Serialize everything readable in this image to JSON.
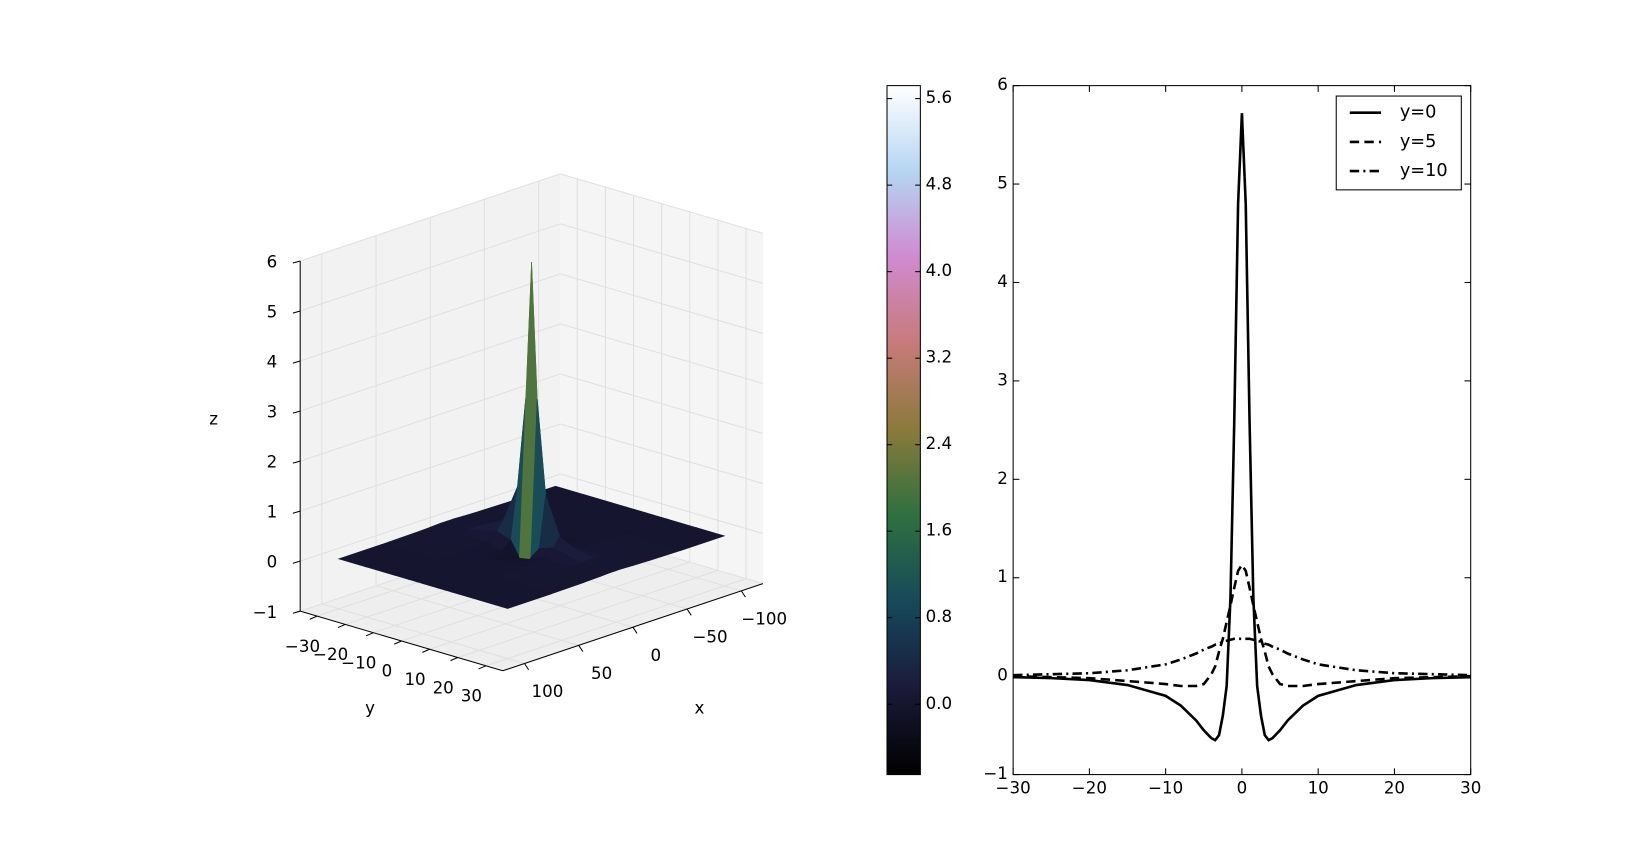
{
  "chart_data": [
    {
      "type": "surface3d",
      "x": [
        -100,
        -60,
        -30,
        -15,
        -6,
        0,
        6,
        15,
        30,
        60,
        100
      ],
      "y": [
        -30,
        -20,
        -10,
        -5,
        -2,
        0,
        2,
        5,
        10,
        20,
        30
      ],
      "z": [
        [
          0,
          0,
          0.01,
          0.02,
          0.03,
          0.03,
          0.03,
          0.02,
          0.01,
          0,
          0
        ],
        [
          0,
          0.01,
          0.02,
          0.04,
          0.06,
          0.08,
          0.06,
          0.04,
          0.02,
          0.01,
          0
        ],
        [
          0,
          0.01,
          0.02,
          0.06,
          0.2,
          0.38,
          0.2,
          0.06,
          0.02,
          0.01,
          0
        ],
        [
          0,
          0,
          -0.01,
          -0.05,
          0.1,
          1.13,
          0.1,
          -0.05,
          -0.01,
          0,
          0
        ],
        [
          0,
          0,
          -0.02,
          -0.08,
          -0.2,
          3.0,
          -0.2,
          -0.08,
          -0.02,
          0,
          0
        ],
        [
          0,
          -0.01,
          -0.03,
          -0.1,
          -0.4,
          5.7,
          -0.4,
          -0.1,
          -0.03,
          -0.01,
          0
        ],
        [
          0,
          0,
          -0.02,
          -0.08,
          -0.2,
          3.0,
          -0.2,
          -0.08,
          -0.02,
          0,
          0
        ],
        [
          0,
          0,
          -0.01,
          -0.05,
          0.1,
          1.13,
          0.1,
          -0.05,
          -0.01,
          0,
          0
        ],
        [
          0,
          0.01,
          0.02,
          0.06,
          0.2,
          0.38,
          0.2,
          0.06,
          0.02,
          0.01,
          0
        ],
        [
          0,
          0.01,
          0.02,
          0.04,
          0.06,
          0.08,
          0.06,
          0.04,
          0.02,
          0.01,
          0
        ],
        [
          0,
          0,
          0.01,
          0.02,
          0.03,
          0.03,
          0.03,
          0.02,
          0.01,
          0,
          0
        ]
      ],
      "xlim": [
        -100,
        100
      ],
      "ylim": [
        -30,
        30
      ],
      "zlim": [
        -1,
        6
      ],
      "xticks": [
        {
          "value": -100,
          "label": "−100"
        },
        {
          "value": -50,
          "label": "−50"
        },
        0,
        50,
        100
      ],
      "yticks": [
        {
          "value": -30,
          "label": "−30"
        },
        {
          "value": -20,
          "label": "−20"
        },
        {
          "value": -10,
          "label": "−10"
        },
        0,
        10,
        20,
        30
      ],
      "zticks": [
        {
          "value": -1,
          "label": "−1"
        },
        0,
        1,
        2,
        3,
        4,
        5,
        6
      ],
      "xlabel": "x",
      "ylabel": "y",
      "zlabel": "z",
      "colormap": [
        "#000000",
        "#1a1a3a",
        "#16495a",
        "#2e7040",
        "#8a7a3a",
        "#c77a7a",
        "#d08ad0",
        "#b5d5f2",
        "#ffffff"
      ],
      "clim": [
        -0.65,
        5.72
      ],
      "cticks": [
        {
          "value": 0,
          "label": "0.0"
        },
        0.8,
        1.6,
        2.4,
        3.2,
        {
          "value": 4,
          "label": "4.0"
        },
        4.8,
        5.6
      ]
    },
    {
      "type": "line",
      "x": [
        -30,
        -25,
        -20,
        -15,
        -10,
        -8,
        -6,
        -5,
        -4,
        -3.5,
        -3,
        -2.5,
        -2,
        -1.5,
        -1,
        -0.5,
        0,
        0.5,
        1,
        1.5,
        2,
        2.5,
        3,
        3.5,
        4,
        5,
        6,
        8,
        10,
        15,
        20,
        25,
        30
      ],
      "series": [
        {
          "name": "y=0",
          "color": "#000000",
          "linestyle": "solid",
          "values": [
            -0.01,
            -0.02,
            -0.04,
            -0.09,
            -0.2,
            -0.3,
            -0.45,
            -0.55,
            -0.63,
            -0.65,
            -0.6,
            -0.4,
            -0.1,
            0.8,
            2.6,
            4.8,
            5.72,
            4.8,
            2.6,
            0.8,
            -0.1,
            -0.4,
            -0.6,
            -0.65,
            -0.63,
            -0.55,
            -0.45,
            -0.3,
            -0.2,
            -0.09,
            -0.04,
            -0.02,
            -0.01
          ]
        },
        {
          "name": "y=5",
          "color": "#000000",
          "linestyle": "dashed",
          "values": [
            0,
            -0.01,
            -0.02,
            -0.05,
            -0.08,
            -0.1,
            -0.1,
            -0.08,
            0.02,
            0.1,
            0.25,
            0.38,
            0.55,
            0.72,
            0.9,
            1.07,
            1.13,
            1.07,
            0.9,
            0.72,
            0.55,
            0.38,
            0.25,
            0.1,
            0.02,
            -0.08,
            -0.1,
            -0.1,
            -0.08,
            -0.05,
            -0.02,
            -0.01,
            0
          ]
        },
        {
          "name": "y=10",
          "color": "#000000",
          "linestyle": "dashdot",
          "values": [
            0.01,
            0.02,
            0.03,
            0.06,
            0.12,
            0.17,
            0.23,
            0.27,
            0.3,
            0.32,
            0.33,
            0.35,
            0.36,
            0.37,
            0.38,
            0.38,
            0.38,
            0.38,
            0.38,
            0.37,
            0.36,
            0.35,
            0.33,
            0.32,
            0.3,
            0.27,
            0.23,
            0.17,
            0.12,
            0.06,
            0.03,
            0.02,
            0.01
          ]
        }
      ],
      "xlim": [
        -30,
        30
      ],
      "ylim": [
        -1,
        6
      ],
      "xticks": [
        {
          "value": -30,
          "label": "−30"
        },
        {
          "value": -20,
          "label": "−20"
        },
        {
          "value": -10,
          "label": "−10"
        },
        0,
        10,
        20,
        30
      ],
      "yticks": [
        {
          "value": -1,
          "label": "−1"
        },
        0,
        1,
        2,
        3,
        4,
        5,
        6
      ],
      "legend": "upper right"
    }
  ]
}
